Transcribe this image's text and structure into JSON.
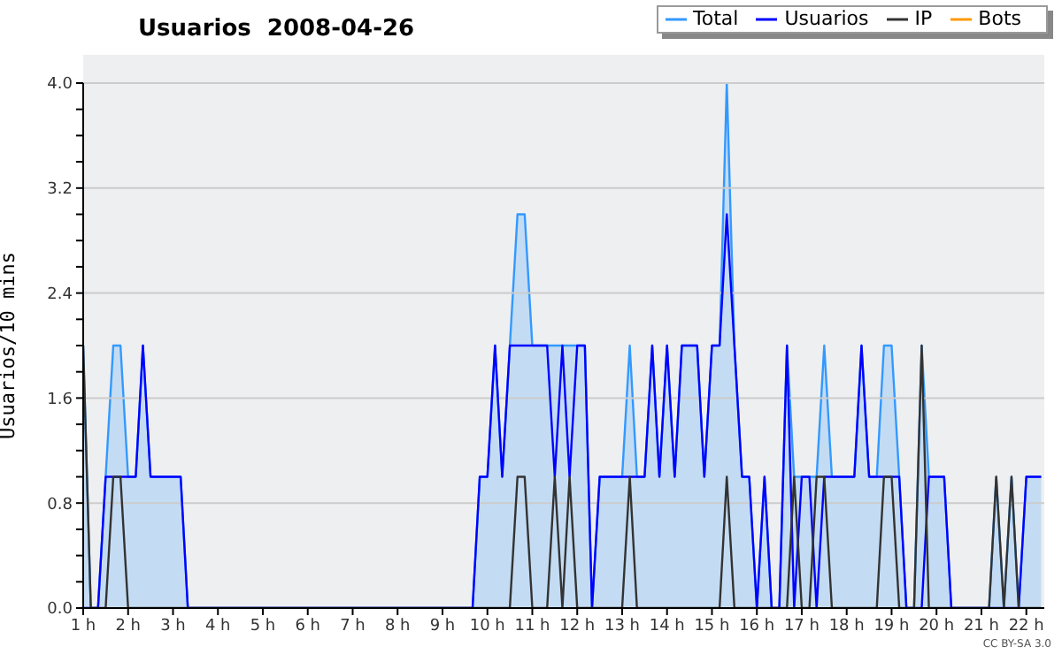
{
  "chart_data": {
    "type": "line",
    "title": "Usuarios  2008-04-26",
    "ylabel": "Usuarios/10 mins",
    "x": [
      1,
      1.17,
      1.33,
      1.5,
      1.67,
      1.83,
      2,
      2.17,
      2.33,
      2.5,
      2.67,
      2.83,
      3,
      3.17,
      3.33,
      3.5,
      3.67,
      3.83,
      4,
      4.17,
      4.33,
      4.5,
      4.67,
      4.83,
      5,
      5.17,
      5.33,
      5.5,
      5.67,
      5.83,
      6,
      6.17,
      6.33,
      6.5,
      6.67,
      6.83,
      7,
      7.17,
      7.33,
      7.5,
      7.67,
      7.83,
      8,
      8.17,
      8.33,
      8.5,
      8.67,
      8.83,
      9,
      9.17,
      9.33,
      9.5,
      9.67,
      9.83,
      10,
      10.17,
      10.33,
      10.5,
      10.67,
      10.83,
      11,
      11.17,
      11.33,
      11.5,
      11.67,
      11.83,
      12,
      12.17,
      12.33,
      12.5,
      12.67,
      12.83,
      13,
      13.17,
      13.33,
      13.5,
      13.67,
      13.83,
      14,
      14.17,
      14.33,
      14.5,
      14.67,
      14.83,
      15,
      15.17,
      15.33,
      15.5,
      15.67,
      15.83,
      16,
      16.17,
      16.33,
      16.5,
      16.67,
      16.83,
      17,
      17.17,
      17.33,
      17.5,
      17.67,
      17.83,
      18,
      18.17,
      18.33,
      18.5,
      18.67,
      18.83,
      19,
      19.17,
      19.33,
      19.5,
      19.67,
      19.83,
      20,
      20.17,
      20.33,
      20.5,
      20.67,
      20.83,
      21,
      21.17,
      21.33,
      21.5,
      21.67,
      21.83,
      22,
      22.17,
      22.33
    ],
    "series": [
      {
        "name": "Total",
        "type": "area",
        "color": "#3399ff",
        "values": [
          2,
          0,
          0,
          1,
          2,
          2,
          1,
          1,
          2,
          1,
          1,
          1,
          1,
          1,
          0,
          0,
          0,
          0,
          0,
          0,
          0,
          0,
          0,
          0,
          0,
          0,
          0,
          0,
          0,
          0,
          0,
          0,
          0,
          0,
          0,
          0,
          0,
          0,
          0,
          0,
          0,
          0,
          0,
          0,
          0,
          0,
          0,
          0,
          0,
          0,
          0,
          0,
          0,
          1,
          1,
          2,
          1,
          2,
          3,
          3,
          2,
          2,
          2,
          2,
          2,
          2,
          2,
          2,
          0,
          1,
          1,
          1,
          1,
          2,
          1,
          1,
          2,
          1,
          2,
          1,
          2,
          2,
          2,
          1,
          2,
          2,
          4,
          2,
          1,
          1,
          0,
          1,
          0,
          0,
          2,
          1,
          1,
          1,
          1,
          2,
          1,
          1,
          1,
          1,
          2,
          1,
          1,
          2,
          2,
          1,
          0,
          0,
          2,
          1,
          1,
          1,
          0,
          0,
          0,
          0,
          0,
          0,
          1,
          0,
          1,
          0,
          1,
          1,
          1
        ]
      },
      {
        "name": "Usuarios",
        "color": "#0000ff",
        "values": [
          0,
          0,
          0,
          1,
          1,
          1,
          1,
          1,
          2,
          1,
          1,
          1,
          1,
          1,
          0,
          0,
          0,
          0,
          0,
          0,
          0,
          0,
          0,
          0,
          0,
          0,
          0,
          0,
          0,
          0,
          0,
          0,
          0,
          0,
          0,
          0,
          0,
          0,
          0,
          0,
          0,
          0,
          0,
          0,
          0,
          0,
          0,
          0,
          0,
          0,
          0,
          0,
          0,
          1,
          1,
          2,
          1,
          2,
          2,
          2,
          2,
          2,
          2,
          1,
          2,
          1,
          2,
          2,
          0,
          1,
          1,
          1,
          1,
          1,
          1,
          1,
          2,
          1,
          2,
          1,
          2,
          2,
          2,
          1,
          2,
          2,
          3,
          2,
          1,
          1,
          0,
          1,
          0,
          0,
          2,
          0,
          1,
          1,
          0,
          1,
          1,
          1,
          1,
          1,
          2,
          1,
          1,
          1,
          1,
          1,
          0,
          0,
          0,
          1,
          1,
          1,
          0,
          0,
          0,
          0,
          0,
          0,
          0,
          0,
          0,
          0,
          1,
          1,
          1
        ]
      },
      {
        "name": "IP",
        "color": "#333333",
        "values": [
          2,
          0,
          0,
          0,
          1,
          1,
          0,
          0,
          0,
          0,
          0,
          0,
          0,
          0,
          0,
          0,
          0,
          0,
          0,
          0,
          0,
          0,
          0,
          0,
          0,
          0,
          0,
          0,
          0,
          0,
          0,
          0,
          0,
          0,
          0,
          0,
          0,
          0,
          0,
          0,
          0,
          0,
          0,
          0,
          0,
          0,
          0,
          0,
          0,
          0,
          0,
          0,
          0,
          0,
          0,
          0,
          0,
          0,
          1,
          1,
          0,
          0,
          0,
          1,
          0,
          1,
          0,
          0,
          0,
          0,
          0,
          0,
          0,
          1,
          0,
          0,
          0,
          0,
          0,
          0,
          0,
          0,
          0,
          0,
          0,
          0,
          1,
          0,
          0,
          0,
          0,
          0,
          0,
          0,
          0,
          1,
          0,
          0,
          1,
          1,
          0,
          0,
          0,
          0,
          0,
          0,
          0,
          1,
          1,
          0,
          0,
          0,
          2,
          0,
          0,
          0,
          0,
          0,
          0,
          0,
          0,
          0,
          1,
          0,
          1,
          0,
          0,
          0,
          0
        ]
      },
      {
        "name": "Bots",
        "color": "#ff9900",
        "values": [
          null,
          null,
          null,
          null,
          null,
          null,
          null,
          null,
          null,
          null,
          null,
          null,
          null,
          null,
          null,
          null,
          null,
          null,
          null,
          null,
          null,
          null,
          null,
          null,
          null,
          null,
          null,
          null,
          null,
          null,
          null,
          null,
          null,
          null,
          null,
          null,
          null,
          null,
          null,
          null,
          null,
          null,
          null,
          null,
          null,
          null,
          null,
          null,
          null,
          null,
          null,
          null,
          null,
          null,
          null,
          null,
          null,
          null,
          null,
          null,
          null,
          null,
          null,
          null,
          null,
          null,
          null,
          null,
          null,
          null,
          null,
          null,
          null,
          null,
          null,
          null,
          null,
          null,
          null,
          null,
          null,
          null,
          null,
          null,
          null,
          null,
          null,
          null,
          null,
          null,
          null,
          null,
          null,
          null,
          null,
          null,
          null,
          null,
          null,
          null,
          null,
          null,
          null,
          null,
          null,
          null,
          null,
          null,
          null,
          null,
          null,
          null,
          null,
          null,
          null,
          null,
          null,
          null,
          null,
          null,
          null,
          null,
          null,
          null,
          null,
          null,
          null,
          null,
          null
        ]
      }
    ],
    "xlim": [
      1,
      22.4
    ],
    "xticks": [
      {
        "value": 1,
        "label": "1 h"
      },
      {
        "value": 2,
        "label": "2 h"
      },
      {
        "value": 3,
        "label": "3 h"
      },
      {
        "value": 4,
        "label": "4 h"
      },
      {
        "value": 5,
        "label": "5 h"
      },
      {
        "value": 6,
        "label": "6 h"
      },
      {
        "value": 7,
        "label": "7 h"
      },
      {
        "value": 8,
        "label": "8 h"
      },
      {
        "value": 9,
        "label": "9 h"
      },
      {
        "value": 10,
        "label": "10 h"
      },
      {
        "value": 11,
        "label": "11 h"
      },
      {
        "value": 12,
        "label": "12 h"
      },
      {
        "value": 13,
        "label": "13 h"
      },
      {
        "value": 14,
        "label": "14 h"
      },
      {
        "value": 15,
        "label": "15 h"
      },
      {
        "value": 16,
        "label": "16 h"
      },
      {
        "value": 17,
        "label": "17 h"
      },
      {
        "value": 18,
        "label": "18 h"
      },
      {
        "value": 19,
        "label": "19 h"
      },
      {
        "value": 20,
        "label": "20 h"
      },
      {
        "value": 21,
        "label": "21 h"
      },
      {
        "value": 22,
        "label": "22 h"
      }
    ],
    "ylim": [
      0,
      4
    ],
    "yticks": [
      {
        "value": 0,
        "label": "0.0"
      },
      {
        "value": 0.2,
        "label": null
      },
      {
        "value": 0.4,
        "label": null
      },
      {
        "value": 0.6,
        "label": null
      },
      {
        "value": 0.8,
        "label": "0.8"
      },
      {
        "value": 1,
        "label": null
      },
      {
        "value": 1.2,
        "label": null
      },
      {
        "value": 1.4,
        "label": null
      },
      {
        "value": 1.6,
        "label": "1.6"
      },
      {
        "value": 1.8,
        "label": null
      },
      {
        "value": 2,
        "label": null
      },
      {
        "value": 2.2,
        "label": null
      },
      {
        "value": 2.4,
        "label": "2.4"
      },
      {
        "value": 2.6,
        "label": null
      },
      {
        "value": 2.8,
        "label": null
      },
      {
        "value": 3,
        "label": null
      },
      {
        "value": 3.2,
        "label": "3.2"
      },
      {
        "value": 3.4,
        "label": null
      },
      {
        "value": 3.6,
        "label": null
      },
      {
        "value": 3.8,
        "label": null
      },
      {
        "value": 4,
        "label": "4.0"
      }
    ],
    "grid": "y",
    "legend": "top right",
    "marker": "none",
    "line_style": "solid",
    "annotations": [
      "CC BY-SA 3.0"
    ]
  }
}
